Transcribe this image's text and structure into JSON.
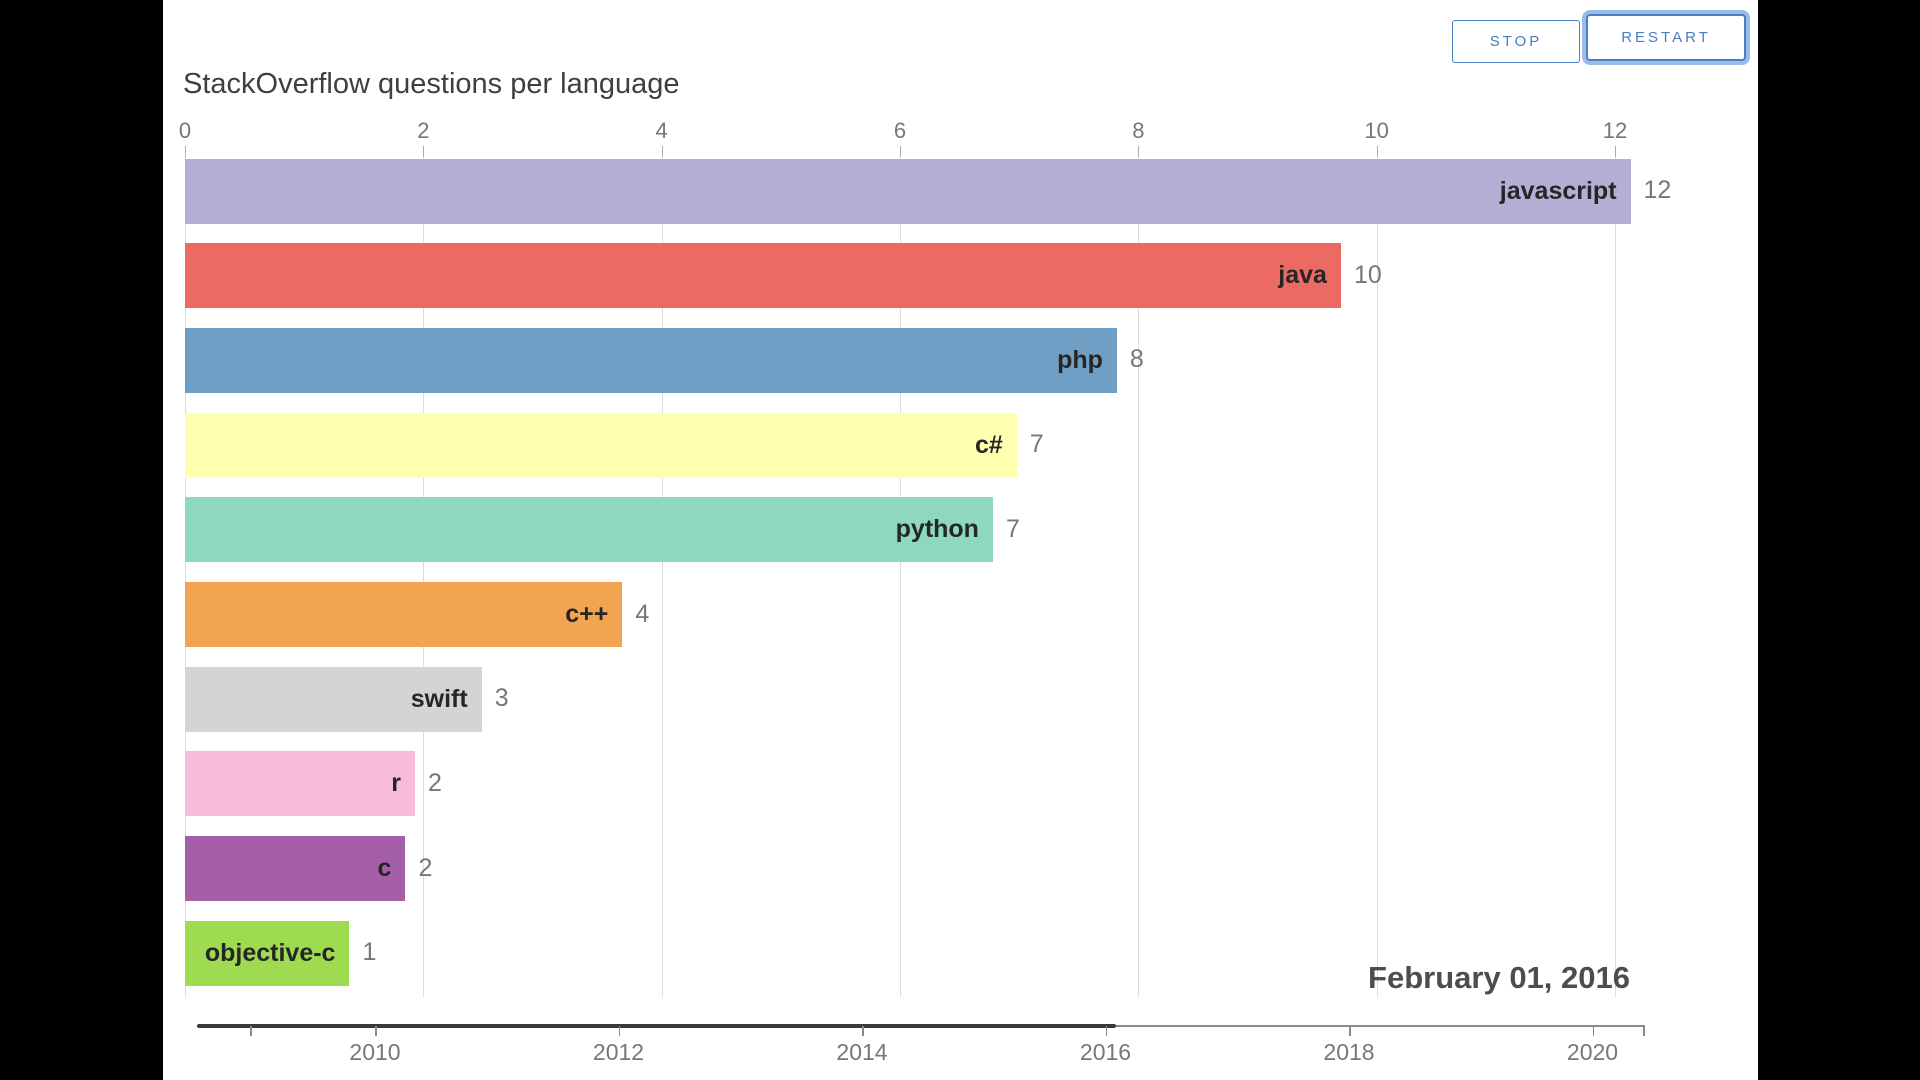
{
  "toolbar": {
    "stop_label": "STOP",
    "restart_label": "RESTART",
    "accent_blue": "#4a7fc4",
    "focus_ring_blue": "#9bbce9"
  },
  "title": "StackOverflow questions per language",
  "date_label": "February 01, 2016",
  "chart_data": {
    "type": "bar",
    "orientation": "horizontal",
    "title": "StackOverflow questions per language",
    "value_axis": {
      "position": "top",
      "ticks": [
        "0",
        "2",
        "4",
        "6",
        "8",
        "10",
        "12"
      ],
      "range": [
        0,
        12.2
      ],
      "grid": true
    },
    "bars": [
      {
        "label": "javascript",
        "value_shown": "12",
        "value": 12.13,
        "color": "#b6aed4"
      },
      {
        "label": "java",
        "value_shown": "10",
        "value": 9.7,
        "color": "#ec6a64"
      },
      {
        "label": "php",
        "value_shown": "8",
        "value": 7.82,
        "color": "#6f9fc4"
      },
      {
        "label": "c#",
        "value_shown": "7",
        "value": 6.98,
        "color": "#ffffb0"
      },
      {
        "label": "python",
        "value_shown": "7",
        "value": 6.78,
        "color": "#8ed7c0"
      },
      {
        "label": "c++",
        "value_shown": "4",
        "value": 3.67,
        "color": "#f2a451"
      },
      {
        "label": "swift",
        "value_shown": "3",
        "value": 2.49,
        "color": "#d4d4d4"
      },
      {
        "label": "r",
        "value_shown": "2",
        "value": 1.93,
        "color": "#f6bcda"
      },
      {
        "label": "c",
        "value_shown": "2",
        "value": 1.85,
        "color": "#a55fa9"
      },
      {
        "label": "objective-c",
        "value_shown": "1",
        "value": 1.38,
        "color": "#9edb51"
      }
    ],
    "timeline": {
      "tick_labels": [
        "2010",
        "2012",
        "2014",
        "2016",
        "2018",
        "2020"
      ],
      "start_year": 2008.54,
      "end_year": 2020.43,
      "progress_year": 2016.09,
      "current_date": "February 01, 2016"
    }
  }
}
